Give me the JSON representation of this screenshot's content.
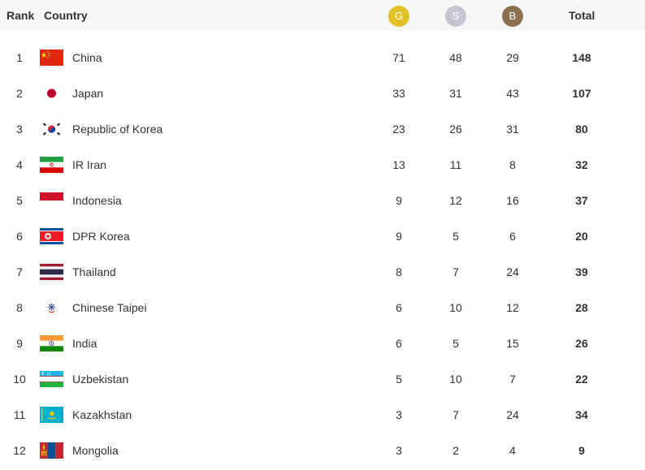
{
  "header": {
    "rank": "Rank",
    "country": "Country",
    "gold": "G",
    "silver": "S",
    "bronze": "B",
    "total": "Total"
  },
  "colors": {
    "gold": "#e1c128",
    "silver": "#c6c6d0",
    "bronze": "#8c7150",
    "header_bg": "#f7f7f7"
  },
  "rows": [
    {
      "rank": "1",
      "country": "China",
      "flag": "china-flag-icon",
      "gold": "71",
      "silver": "48",
      "bronze": "29",
      "total": "148"
    },
    {
      "rank": "2",
      "country": "Japan",
      "flag": "japan-flag-icon",
      "gold": "33",
      "silver": "31",
      "bronze": "43",
      "total": "107"
    },
    {
      "rank": "3",
      "country": "Republic of Korea",
      "flag": "korea-flag-icon",
      "gold": "23",
      "silver": "26",
      "bronze": "31",
      "total": "80"
    },
    {
      "rank": "4",
      "country": "IR Iran",
      "flag": "iran-flag-icon",
      "gold": "13",
      "silver": "11",
      "bronze": "8",
      "total": "32"
    },
    {
      "rank": "5",
      "country": "Indonesia",
      "flag": "indonesia-flag-icon",
      "gold": "9",
      "silver": "12",
      "bronze": "16",
      "total": "37"
    },
    {
      "rank": "6",
      "country": "DPR Korea",
      "flag": "dpr-korea-flag-icon",
      "gold": "9",
      "silver": "5",
      "bronze": "6",
      "total": "20"
    },
    {
      "rank": "7",
      "country": "Thailand",
      "flag": "thailand-flag-icon",
      "gold": "8",
      "silver": "7",
      "bronze": "24",
      "total": "39"
    },
    {
      "rank": "8",
      "country": "Chinese Taipei",
      "flag": "chinese-taipei-flag-icon",
      "gold": "6",
      "silver": "10",
      "bronze": "12",
      "total": "28"
    },
    {
      "rank": "9",
      "country": "India",
      "flag": "india-flag-icon",
      "gold": "6",
      "silver": "5",
      "bronze": "15",
      "total": "26"
    },
    {
      "rank": "10",
      "country": "Uzbekistan",
      "flag": "uzbekistan-flag-icon",
      "gold": "5",
      "silver": "10",
      "bronze": "7",
      "total": "22"
    },
    {
      "rank": "11",
      "country": "Kazakhstan",
      "flag": "kazakhstan-flag-icon",
      "gold": "3",
      "silver": "7",
      "bronze": "24",
      "total": "34"
    },
    {
      "rank": "12",
      "country": "Mongolia",
      "flag": "mongolia-flag-icon",
      "gold": "3",
      "silver": "2",
      "bronze": "4",
      "total": "9"
    }
  ]
}
